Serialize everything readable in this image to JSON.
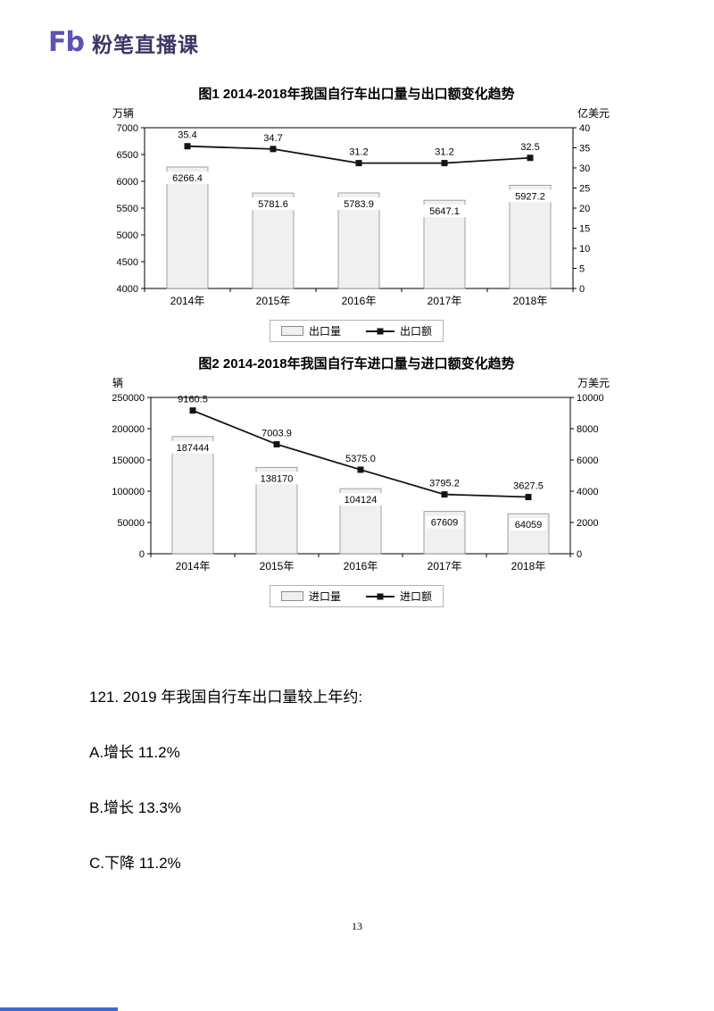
{
  "header": {
    "logo_text": "Fb",
    "brand": "粉笔直播课",
    "brand_color": "#5a54b2"
  },
  "chart_data": [
    {
      "type": "bar",
      "subtype": "bar+line dual axis",
      "title": "图1 2014-2018年我国自行车出口量与出口额变化趋势",
      "left_axis_label": "万辆",
      "right_axis_label": "亿美元",
      "categories": [
        "2014年",
        "2015年",
        "2016年",
        "2017年",
        "2018年"
      ],
      "series": [
        {
          "name": "出口量",
          "type": "bar",
          "axis": "left",
          "values": [
            6266.4,
            5781.6,
            5783.9,
            5647.1,
            5927.2
          ],
          "labels": [
            "6266.4",
            "5781.6",
            "5783.9",
            "5647.1",
            "5927.2"
          ]
        },
        {
          "name": "出口额",
          "type": "line",
          "axis": "right",
          "values": [
            35.4,
            34.7,
            31.2,
            31.2,
            32.5
          ],
          "labels": [
            "35.4",
            "34.7",
            "31.2",
            "31.2",
            "32.5"
          ]
        }
      ],
      "left_ylim": [
        4000,
        7000
      ],
      "left_ticks": [
        "7000",
        "6500",
        "6000",
        "5500",
        "5000",
        "4500",
        "4000"
      ],
      "left_tick_values": [
        7000,
        6500,
        6000,
        5500,
        5000,
        4500,
        4000
      ],
      "right_ylim": [
        0,
        40
      ],
      "right_ticks": [
        "40",
        "35",
        "30",
        "25",
        "20",
        "15",
        "10",
        "5",
        "0"
      ],
      "right_tick_values": [
        40,
        35,
        30,
        25,
        20,
        15,
        10,
        5,
        0
      ],
      "grid": false,
      "legend_position": "bottom",
      "bar_color": "#f0f0f0",
      "line_color": "#141414"
    },
    {
      "type": "bar",
      "subtype": "bar+line dual axis",
      "title": "图2 2014-2018年我国自行车进口量与进口额变化趋势",
      "left_axis_label": "辆",
      "right_axis_label": "万美元",
      "categories": [
        "2014年",
        "2015年",
        "2016年",
        "2017年",
        "2018年"
      ],
      "series": [
        {
          "name": "进口量",
          "type": "bar",
          "axis": "left",
          "values": [
            187444,
            138170,
            104124,
            67609,
            64059
          ],
          "labels": [
            "187444",
            "138170",
            "104124",
            "67609",
            "64059"
          ]
        },
        {
          "name": "进口额",
          "type": "line",
          "axis": "right",
          "values": [
            9160.5,
            7003.9,
            5375.0,
            3795.2,
            3627.5
          ],
          "labels": [
            "9160.5",
            "7003.9",
            "5375.0",
            "3795.2",
            "3627.5"
          ]
        }
      ],
      "left_ylim": [
        0,
        250000
      ],
      "left_ticks": [
        "250000",
        "200000",
        "150000",
        "100000",
        "50000",
        "0"
      ],
      "left_tick_values": [
        250000,
        200000,
        150000,
        100000,
        50000,
        0
      ],
      "right_ylim": [
        0,
        10000
      ],
      "right_ticks": [
        "10000",
        "8000",
        "6000",
        "4000",
        "2000",
        "0"
      ],
      "right_tick_values": [
        10000,
        8000,
        6000,
        4000,
        2000,
        0
      ],
      "grid": false,
      "legend_position": "bottom",
      "bar_color": "#f0f0f0",
      "line_color": "#141414"
    }
  ],
  "question": {
    "stem": "121. 2019 年我国自行车出口量较上年约:",
    "options": [
      "A.增长 11.2%",
      "B.增长 13.3%",
      "C.下降 11.2%"
    ]
  },
  "page": {
    "number": "13"
  }
}
